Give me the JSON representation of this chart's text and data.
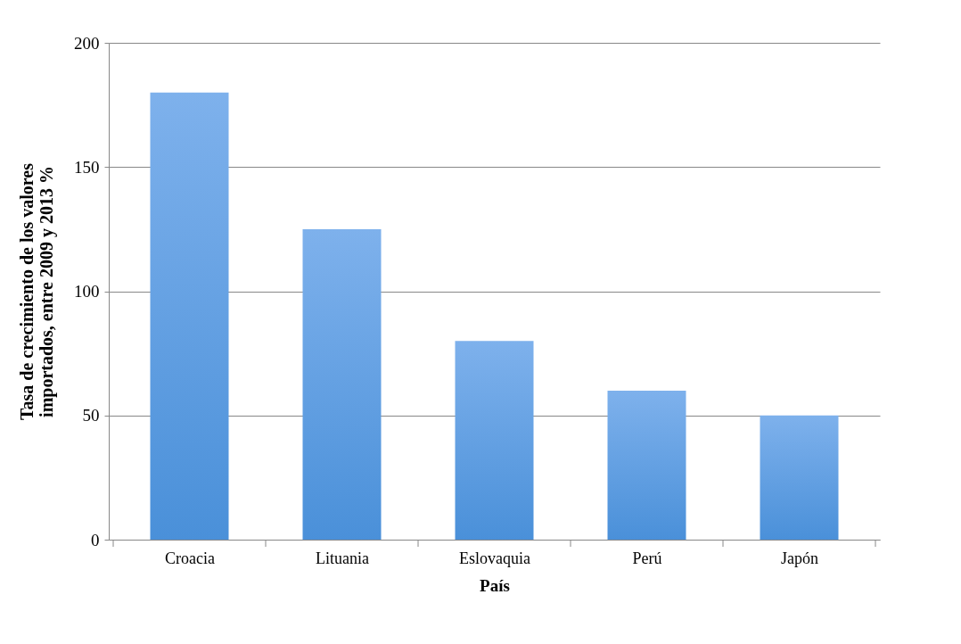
{
  "chart_data": {
    "type": "bar",
    "xlabel": "País",
    "ylabel": "Tasa de crecimiento de los valores\nimportados, entre 2009 y 2013 %",
    "categories": [
      "Croacia",
      "Lituania",
      "Eslovaquia",
      "Perú",
      "Japón"
    ],
    "values": [
      180,
      125,
      80,
      60,
      50
    ],
    "color": "#7eb1ec",
    "ylim": [
      0,
      200
    ],
    "yticks": [
      0,
      50,
      100,
      150,
      200
    ],
    "grid": "y"
  }
}
